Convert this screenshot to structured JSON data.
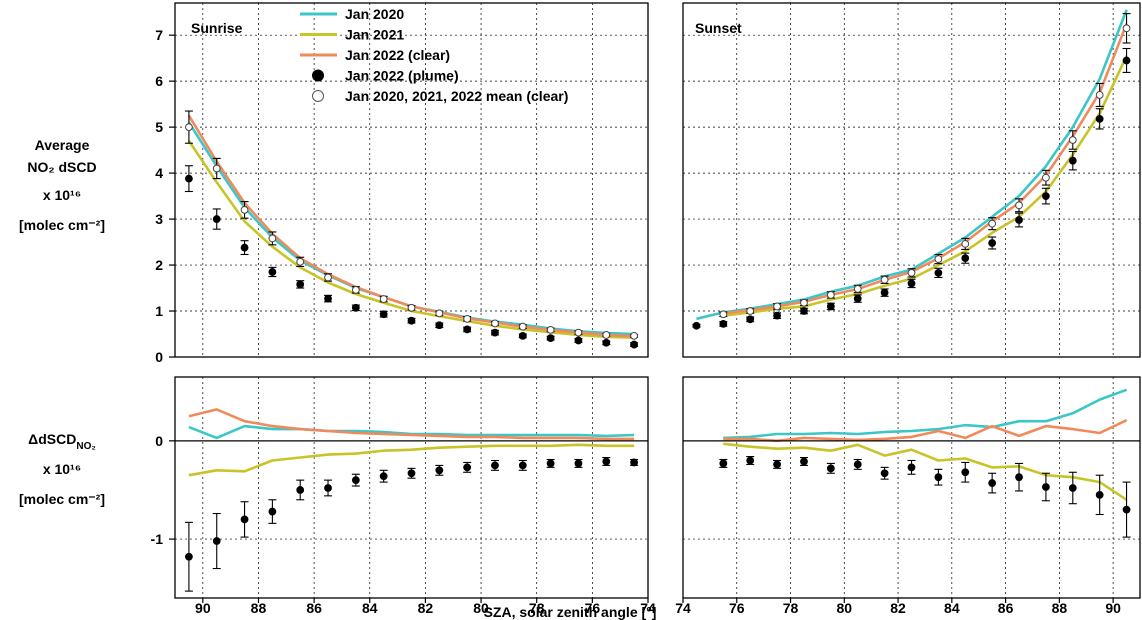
{
  "chart_data": {
    "type": "line",
    "top_ylabel": [
      "Average",
      "NO₂ dSCD",
      "x 10¹⁶",
      "[molec cm⁻²]"
    ],
    "bottom_ylabel": [
      "ΔdSCD",
      "NO₂",
      "x 10¹⁶",
      "[molec cm⁻²]"
    ],
    "xlabel": "SZA, solar zenith angle [°]",
    "panel_titles": {
      "sunrise": "Sunrise",
      "sunset": "Sunset"
    },
    "x_ticks": [
      74,
      76,
      78,
      80,
      82,
      84,
      86,
      88,
      90
    ],
    "top_yticks": [
      0,
      1,
      2,
      3,
      4,
      5,
      6,
      7
    ],
    "bottom_yticks": [
      -1,
      0
    ],
    "top_ylim": [
      0,
      7.7
    ],
    "bottom_ylim": [
      -1.6,
      0.65
    ],
    "sunrise_xlim": [
      91,
      74
    ],
    "sunset_xlim": [
      74,
      91
    ],
    "grid": true,
    "legend": {
      "placement": "top-center",
      "entries": [
        {
          "label": "Jan 2020",
          "kind": "line",
          "color": "#3bc6c8"
        },
        {
          "label": "Jan 2021",
          "kind": "line",
          "color": "#c8c428"
        },
        {
          "label": "Jan 2022 (clear)",
          "kind": "line",
          "color": "#f08a5c"
        },
        {
          "label": "Jan 2022 (plume)",
          "kind": "dot",
          "color": "#000000"
        },
        {
          "label": "Jan 2020, 2021, 2022 mean (clear)",
          "kind": "circle",
          "color": "#ffffff"
        }
      ]
    },
    "sunrise": {
      "x": [
        90.5,
        89.5,
        88.5,
        87.5,
        86.5,
        85.5,
        84.5,
        83.5,
        82.5,
        81.5,
        80.5,
        79.5,
        78.5,
        77.5,
        76.5,
        75.5,
        74.5
      ],
      "series": [
        {
          "name": "Jan 2020",
          "color": "#3bc6c8",
          "values": [
            5.1,
            4.15,
            3.25,
            2.6,
            2.1,
            1.78,
            1.5,
            1.3,
            1.1,
            0.98,
            0.86,
            0.77,
            0.7,
            0.62,
            0.56,
            0.52,
            0.5
          ]
        },
        {
          "name": "Jan 2021",
          "color": "#c8c428",
          "values": [
            4.7,
            3.8,
            2.95,
            2.4,
            1.95,
            1.62,
            1.37,
            1.18,
            1.0,
            0.89,
            0.78,
            0.68,
            0.6,
            0.54,
            0.48,
            0.44,
            0.42
          ]
        },
        {
          "name": "Jan 2022 (clear)",
          "color": "#f08a5c",
          "values": [
            5.25,
            4.25,
            3.35,
            2.68,
            2.15,
            1.8,
            1.52,
            1.3,
            1.1,
            0.97,
            0.84,
            0.75,
            0.66,
            0.59,
            0.53,
            0.48,
            0.45
          ]
        }
      ],
      "mean_clear": {
        "values": [
          5.0,
          4.1,
          3.2,
          2.58,
          2.07,
          1.73,
          1.46,
          1.26,
          1.07,
          0.95,
          0.83,
          0.73,
          0.66,
          0.59,
          0.53,
          0.48,
          0.46
        ],
        "err": [
          0.35,
          0.22,
          0.18,
          0.14,
          0.1,
          0.08,
          0.07,
          0.06,
          0.05,
          0.05,
          0.05,
          0.04,
          0.04,
          0.04,
          0.04,
          0.03,
          0.03
        ]
      },
      "plume": {
        "values": [
          3.88,
          3.0,
          2.38,
          1.85,
          1.58,
          1.27,
          1.07,
          0.93,
          0.79,
          0.69,
          0.6,
          0.53,
          0.46,
          0.41,
          0.36,
          0.31,
          0.27
        ],
        "err": [
          0.28,
          0.22,
          0.15,
          0.1,
          0.08,
          0.07,
          0.06,
          0.06,
          0.05,
          0.05,
          0.05,
          0.05,
          0.04,
          0.04,
          0.04,
          0.04,
          0.04
        ]
      },
      "delta": {
        "series": [
          {
            "name": "Jan 2020",
            "color": "#3bc6c8",
            "values": [
              0.14,
              0.03,
              0.15,
              0.12,
              0.12,
              0.1,
              0.1,
              0.09,
              0.07,
              0.07,
              0.06,
              0.06,
              0.06,
              0.06,
              0.06,
              0.05,
              0.06
            ]
          },
          {
            "name": "Jan 2021",
            "color": "#c8c428",
            "values": [
              -0.35,
              -0.3,
              -0.31,
              -0.2,
              -0.17,
              -0.14,
              -0.13,
              -0.1,
              -0.09,
              -0.07,
              -0.06,
              -0.05,
              -0.05,
              -0.05,
              -0.04,
              -0.05,
              -0.05
            ]
          },
          {
            "name": "Jan 2022 (clear)",
            "color": "#f08a5c",
            "values": [
              0.25,
              0.32,
              0.2,
              0.15,
              0.12,
              0.1,
              0.08,
              0.07,
              0.06,
              0.05,
              0.04,
              0.04,
              0.03,
              0.03,
              0.03,
              0.02,
              0.02
            ]
          }
        ],
        "plume": {
          "values": [
            -1.18,
            -1.02,
            -0.8,
            -0.72,
            -0.5,
            -0.48,
            -0.4,
            -0.36,
            -0.33,
            -0.3,
            -0.27,
            -0.25,
            -0.25,
            -0.23,
            -0.23,
            -0.21,
            -0.22
          ],
          "err": [
            0.35,
            0.28,
            0.18,
            0.12,
            0.1,
            0.08,
            0.06,
            0.06,
            0.05,
            0.05,
            0.05,
            0.05,
            0.05,
            0.04,
            0.04,
            0.04,
            0.03
          ]
        }
      }
    },
    "sunset": {
      "x": [
        74.5,
        75.5,
        76.5,
        77.5,
        78.5,
        79.5,
        80.5,
        81.5,
        82.5,
        83.5,
        84.5,
        85.5,
        86.5,
        87.5,
        88.5,
        89.5,
        90.5
      ],
      "series": [
        {
          "name": "Jan 2020",
          "color": "#3bc6c8",
          "values": [
            0.83,
            0.97,
            1.05,
            1.15,
            1.25,
            1.42,
            1.55,
            1.75,
            1.9,
            2.25,
            2.6,
            3.05,
            3.5,
            4.15,
            5.0,
            6.05,
            7.55
          ]
        },
        {
          "name": "Jan 2021",
          "color": "#c8c428",
          "values": [
            null,
            0.9,
            0.97,
            1.05,
            1.1,
            1.25,
            1.37,
            1.55,
            1.7,
            2.0,
            2.3,
            2.7,
            3.05,
            3.6,
            4.4,
            5.3,
            6.55
          ]
        },
        {
          "name": "Jan 2022 (clear)",
          "color": "#f08a5c",
          "values": [
            null,
            0.95,
            1.02,
            1.1,
            1.2,
            1.35,
            1.48,
            1.68,
            1.85,
            2.15,
            2.5,
            2.95,
            3.35,
            3.95,
            4.8,
            5.75,
            7.25
          ]
        }
      ],
      "mean_clear": {
        "values": [
          null,
          0.93,
          1.0,
          1.1,
          1.18,
          1.35,
          1.48,
          1.68,
          1.83,
          2.13,
          2.46,
          2.9,
          3.3,
          3.9,
          4.72,
          5.7,
          7.15
        ],
        "err": [
          null,
          0.05,
          0.05,
          0.06,
          0.06,
          0.07,
          0.08,
          0.08,
          0.09,
          0.1,
          0.12,
          0.13,
          0.14,
          0.16,
          0.2,
          0.25,
          0.32
        ]
      },
      "plume": {
        "values": [
          0.68,
          0.72,
          0.82,
          0.9,
          1.0,
          1.1,
          1.27,
          1.4,
          1.6,
          1.83,
          2.15,
          2.48,
          2.98,
          3.5,
          4.27,
          5.18,
          6.45
        ],
        "err": [
          0.03,
          0.05,
          0.05,
          0.06,
          0.06,
          0.07,
          0.08,
          0.08,
          0.09,
          0.1,
          0.11,
          0.13,
          0.15,
          0.17,
          0.2,
          0.22,
          0.26
        ]
      },
      "delta": {
        "series": [
          {
            "name": "Jan 2020",
            "color": "#3bc6c8",
            "values": [
              null,
              0.03,
              0.04,
              0.07,
              0.07,
              0.08,
              0.07,
              0.09,
              0.1,
              0.12,
              0.16,
              0.14,
              0.2,
              0.2,
              0.28,
              0.42,
              0.52
            ]
          },
          {
            "name": "Jan 2021",
            "color": "#c8c428",
            "values": [
              null,
              -0.03,
              -0.06,
              -0.08,
              -0.07,
              -0.1,
              -0.04,
              -0.15,
              -0.09,
              -0.2,
              -0.18,
              -0.27,
              -0.26,
              -0.35,
              -0.37,
              -0.42,
              -0.6
            ]
          },
          {
            "name": "Jan 2022 (clear)",
            "color": "#f08a5c",
            "values": [
              null,
              0.02,
              0.02,
              0.0,
              0.03,
              0.02,
              0.01,
              0.02,
              0.04,
              0.1,
              0.03,
              0.15,
              0.05,
              0.15,
              0.12,
              0.08,
              0.21
            ]
          }
        ],
        "plume": {
          "values": [
            null,
            -0.23,
            -0.2,
            -0.24,
            -0.21,
            -0.28,
            -0.24,
            -0.33,
            -0.27,
            -0.37,
            -0.32,
            -0.43,
            -0.37,
            -0.47,
            -0.48,
            -0.55,
            -0.7
          ],
          "err": [
            null,
            0.04,
            0.04,
            0.04,
            0.04,
            0.05,
            0.05,
            0.06,
            0.07,
            0.08,
            0.1,
            0.1,
            0.14,
            0.14,
            0.16,
            0.2,
            0.28
          ]
        }
      }
    }
  }
}
